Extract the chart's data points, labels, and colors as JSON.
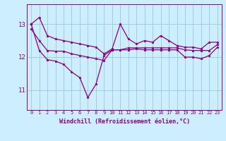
{
  "x": [
    0,
    1,
    2,
    3,
    4,
    5,
    6,
    7,
    8,
    9,
    10,
    11,
    12,
    13,
    14,
    15,
    16,
    17,
    18,
    19,
    20,
    21,
    22,
    23
  ],
  "y_max": [
    13.0,
    13.2,
    12.65,
    12.55,
    12.5,
    12.45,
    12.4,
    12.35,
    12.3,
    12.1,
    12.25,
    13.0,
    12.55,
    12.4,
    12.5,
    12.45,
    12.65,
    12.5,
    12.35,
    12.3,
    12.3,
    12.25,
    12.45,
    12.45
  ],
  "y_mean": [
    12.85,
    12.5,
    12.2,
    12.18,
    12.18,
    12.1,
    12.05,
    12.0,
    11.95,
    11.9,
    12.22,
    12.22,
    12.28,
    12.28,
    12.28,
    12.28,
    12.28,
    12.28,
    12.28,
    12.22,
    12.2,
    12.2,
    12.2,
    12.38
  ],
  "y_min": [
    13.0,
    12.2,
    11.92,
    11.88,
    11.78,
    11.55,
    11.38,
    10.78,
    11.18,
    12.05,
    12.22,
    12.22,
    12.22,
    12.25,
    12.22,
    12.22,
    12.22,
    12.22,
    12.22,
    12.0,
    12.0,
    11.95,
    12.05,
    12.3
  ],
  "line_color": "#880088",
  "bg_color": "#cceeff",
  "grid_color": "#99cccc",
  "xlabel": "Windchill (Refroidissement éolien,°C)",
  "yticks": [
    11,
    12,
    13
  ],
  "ylim": [
    10.4,
    13.6
  ],
  "xlim": [
    -0.5,
    23.5
  ],
  "figsize": [
    3.2,
    2.0
  ],
  "dpi": 100
}
